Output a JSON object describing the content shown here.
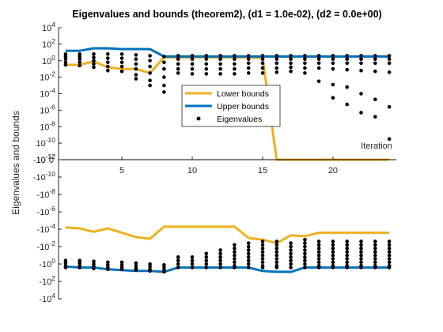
{
  "chart_data": {
    "type": "line",
    "title": "Eigenvalues and bounds (theorem2), (d1 = 1.0e-02), (d2 = 0.0e+00)",
    "ylabel": "Eigenvalues and bounds",
    "annotation": "Iteration",
    "x_ticks": [
      "5",
      "10",
      "15",
      "20"
    ],
    "x_tick_values": [
      5,
      10,
      15,
      20
    ],
    "y_tick_labels_top": [
      "10^4",
      "10^2",
      "10^0",
      "10^-2",
      "10^-4",
      "10^-6",
      "10^-8",
      "10^-10",
      "10^-12"
    ],
    "y_tick_labels_bottom": [
      "-10^-12",
      "-10^-10",
      "-10^-8",
      "-10^-6",
      "-10^-4",
      "-10^-2",
      "-10^0",
      "-10^2",
      "-10^4"
    ],
    "zero_label": "0",
    "xlim": [
      0.5,
      24.5
    ],
    "legend": {
      "position": "center",
      "entries": [
        "Lower bounds",
        "Upper bounds",
        "Eigenvalues"
      ]
    },
    "colors": {
      "lower": "#EDB120",
      "upper": "#0072BD",
      "eig": "#000000"
    },
    "series": [
      {
        "name": "Lower bounds",
        "x": [
          1,
          2,
          3,
          4,
          5,
          6,
          7,
          8,
          9,
          10,
          11,
          12,
          13,
          14,
          15,
          16,
          17,
          18,
          19,
          20,
          21,
          22,
          23,
          24
        ],
        "y_exp_pos": [
          -0.5,
          -0.5,
          -0.1,
          -0.8,
          -1.0,
          -1.0,
          -1.5,
          0.4,
          0.4,
          0.4,
          0.4,
          0.4,
          0.4,
          0.4,
          0.3,
          "zero",
          "zero",
          "zero",
          "zero",
          "zero",
          "zero",
          "zero",
          "zero",
          "zero"
        ],
        "y_exp_neg": [
          -4.2,
          -4.1,
          -3.7,
          -4.1,
          -3.6,
          -3.1,
          -2.9,
          -4.3,
          -4.3,
          -4.3,
          -4.3,
          -4.3,
          -4.3,
          -3.0,
          -2.8,
          -2.4,
          -3.3,
          -3.2,
          -3.6,
          -3.6,
          -3.6,
          -3.6,
          -3.6,
          -3.6
        ]
      },
      {
        "name": "Upper bounds",
        "x": [
          1,
          2,
          3,
          4,
          5,
          6,
          7,
          8,
          9,
          10,
          11,
          12,
          13,
          14,
          15,
          16,
          17,
          18,
          19,
          20,
          21,
          22,
          23,
          24
        ],
        "y_exp_pos": [
          1.2,
          1.2,
          1.5,
          1.5,
          1.4,
          1.4,
          1.4,
          0.5,
          0.5,
          0.5,
          0.5,
          0.5,
          0.5,
          0.5,
          0.5,
          0.5,
          0.5,
          0.5,
          0.5,
          0.5,
          0.5,
          0.5,
          0.5,
          0.5
        ],
        "y_exp_neg": [
          0.3,
          0.4,
          0.4,
          0.6,
          0.7,
          0.8,
          0.8,
          0.9,
          0.4,
          0.4,
          0.4,
          0.4,
          0.4,
          0.4,
          0.8,
          0.9,
          0.9,
          0.4,
          0.4,
          0.4,
          0.4,
          0.4,
          0.4,
          0.4
        ]
      },
      {
        "name": "Eigenvalues",
        "positive": [
          {
            "x": 1,
            "e": [
              0.8,
              0.5,
              0.2,
              -0.2,
              -0.5
            ]
          },
          {
            "x": 2,
            "e": [
              0.8,
              0.5,
              0.2,
              -0.2,
              -0.6
            ]
          },
          {
            "x": 3,
            "e": [
              0.8,
              0.4,
              0.0,
              -0.4,
              -0.8
            ]
          },
          {
            "x": 4,
            "e": [
              0.8,
              0.3,
              -0.2,
              -0.7,
              -1.2
            ]
          },
          {
            "x": 5,
            "e": [
              0.8,
              0.3,
              -0.2,
              -0.7,
              -1.3
            ]
          },
          {
            "x": 6,
            "e": [
              0.7,
              0.2,
              -0.4,
              -1.0,
              -1.7,
              -2.2
            ]
          },
          {
            "x": 7,
            "e": [
              0.6,
              0.0,
              -0.7,
              -1.5,
              -2.4,
              -3.0
            ]
          },
          {
            "x": 8,
            "e": [
              0.5,
              -0.2,
              -1.0,
              -2.0,
              -3.0,
              -3.8
            ]
          },
          {
            "x": 9,
            "e": [
              0.6,
              0.2,
              -0.4,
              -1.0,
              -1.5
            ]
          },
          {
            "x": 10,
            "e": [
              0.6,
              0.2,
              -0.4,
              -1.0,
              -1.6
            ]
          },
          {
            "x": 11,
            "e": [
              0.6,
              0.2,
              -0.4,
              -1.0,
              -1.6
            ]
          },
          {
            "x": 12,
            "e": [
              0.6,
              0.2,
              -0.4,
              -1.0,
              -1.6
            ]
          },
          {
            "x": 13,
            "e": [
              0.6,
              0.2,
              -0.4,
              -1.0,
              -1.6
            ]
          },
          {
            "x": 14,
            "e": [
              0.6,
              0.2,
              -0.3,
              -0.9,
              -1.5
            ]
          },
          {
            "x": 15,
            "e": [
              0.6,
              0.2,
              -0.3,
              -0.9,
              -1.5
            ]
          },
          {
            "x": 16,
            "e": [
              0.6,
              0.2,
              -0.3,
              -0.9,
              -1.4
            ]
          },
          {
            "x": 17,
            "e": [
              0.6,
              0.2,
              -0.3,
              -0.8,
              -1.3
            ]
          },
          {
            "x": 18,
            "e": [
              0.6,
              0.2,
              -0.3,
              -0.9,
              -1.5
            ]
          },
          {
            "x": 19,
            "e": [
              0.6,
              0.2,
              -0.3,
              -0.9,
              -2.5
            ]
          },
          {
            "x": 20,
            "e": [
              0.6,
              0.2,
              -0.3,
              -1.0,
              -2.9,
              -4.5
            ]
          },
          {
            "x": 21,
            "e": [
              0.6,
              0.2,
              -0.3,
              -1.1,
              -3.2,
              -5.3
            ]
          },
          {
            "x": 22,
            "e": [
              0.6,
              0.2,
              -0.3,
              -1.2,
              -4.0,
              -6.3
            ]
          },
          {
            "x": 23,
            "e": [
              0.6,
              0.2,
              -0.3,
              -1.3,
              -4.7,
              -6.8
            ]
          },
          {
            "x": 24,
            "e": [
              0.6,
              0.2,
              -0.3,
              -1.4,
              -5.6,
              -9.5
            ]
          }
        ],
        "negative": [
          {
            "x": 1,
            "e": [
              -0.4,
              -0.1,
              0.2,
              0.4
            ]
          },
          {
            "x": 2,
            "e": [
              -0.4,
              -0.1,
              0.2,
              0.4
            ]
          },
          {
            "x": 3,
            "e": [
              -0.3,
              0.0,
              0.3,
              0.5
            ]
          },
          {
            "x": 4,
            "e": [
              -0.2,
              0.1,
              0.4,
              0.6
            ]
          },
          {
            "x": 5,
            "e": [
              -0.2,
              0.1,
              0.4,
              0.6
            ]
          },
          {
            "x": 6,
            "e": [
              -0.1,
              0.2,
              0.5,
              0.7
            ]
          },
          {
            "x": 7,
            "e": [
              0.0,
              0.3,
              0.6,
              0.8
            ]
          },
          {
            "x": 8,
            "e": [
              0.1,
              0.4,
              0.7,
              0.9
            ]
          },
          {
            "x": 9,
            "e": [
              -0.8,
              -0.4,
              0.0,
              0.4
            ]
          },
          {
            "x": 10,
            "e": [
              -0.8,
              -0.4,
              0.0,
              0.4
            ]
          },
          {
            "x": 11,
            "e": [
              -1.2,
              -0.8,
              -0.4,
              0.0,
              0.4
            ]
          },
          {
            "x": 12,
            "e": [
              -1.6,
              -1.2,
              -0.8,
              -0.4,
              0.0,
              0.4
            ]
          },
          {
            "x": 13,
            "e": [
              -2.2,
              -1.8,
              -1.4,
              -1.0,
              -0.6,
              -0.2,
              0.2,
              0.4
            ]
          },
          {
            "x": 14,
            "e": [
              -2.4,
              -2.0,
              -1.6,
              -1.2,
              -0.8,
              -0.4,
              0.0,
              0.4
            ]
          },
          {
            "x": 15,
            "e": [
              -2.6,
              -2.2,
              -1.8,
              -1.4,
              -1.0,
              -0.6,
              -0.2,
              0.2,
              0.4
            ]
          },
          {
            "x": 16,
            "e": [
              -2.6,
              -2.2,
              -1.8,
              -1.4,
              -1.0,
              -0.6,
              -0.2,
              0.2,
              0.4
            ]
          },
          {
            "x": 17,
            "e": [
              -2.4,
              -2.0,
              -1.6,
              -1.2,
              -0.8,
              -0.4,
              0.0,
              0.4
            ]
          },
          {
            "x": 18,
            "e": [
              -2.8,
              -2.4,
              -2.0,
              -1.6,
              -1.2,
              -0.8,
              -0.4,
              0.0,
              0.4
            ]
          },
          {
            "x": 19,
            "e": [
              -2.6,
              -2.2,
              -1.8,
              -1.4,
              -1.0,
              -0.6,
              -0.2,
              0.2,
              0.4
            ]
          },
          {
            "x": 20,
            "e": [
              -2.6,
              -2.2,
              -1.8,
              -1.4,
              -1.0,
              -0.6,
              -0.2,
              0.2,
              0.4
            ]
          },
          {
            "x": 21,
            "e": [
              -2.6,
              -2.2,
              -1.8,
              -1.4,
              -1.0,
              -0.6,
              -0.2,
              0.2,
              0.4
            ]
          },
          {
            "x": 22,
            "e": [
              -2.6,
              -2.2,
              -1.8,
              -1.4,
              -1.0,
              -0.6,
              -0.2,
              0.2,
              0.4
            ]
          },
          {
            "x": 23,
            "e": [
              -2.6,
              -2.2,
              -1.8,
              -1.4,
              -1.0,
              -0.6,
              -0.2,
              0.2,
              0.4
            ]
          },
          {
            "x": 24,
            "e": [
              -2.6,
              -2.2,
              -1.8,
              -1.4,
              -1.0,
              -0.6,
              -0.2,
              0.2,
              0.4
            ]
          }
        ]
      }
    ]
  }
}
